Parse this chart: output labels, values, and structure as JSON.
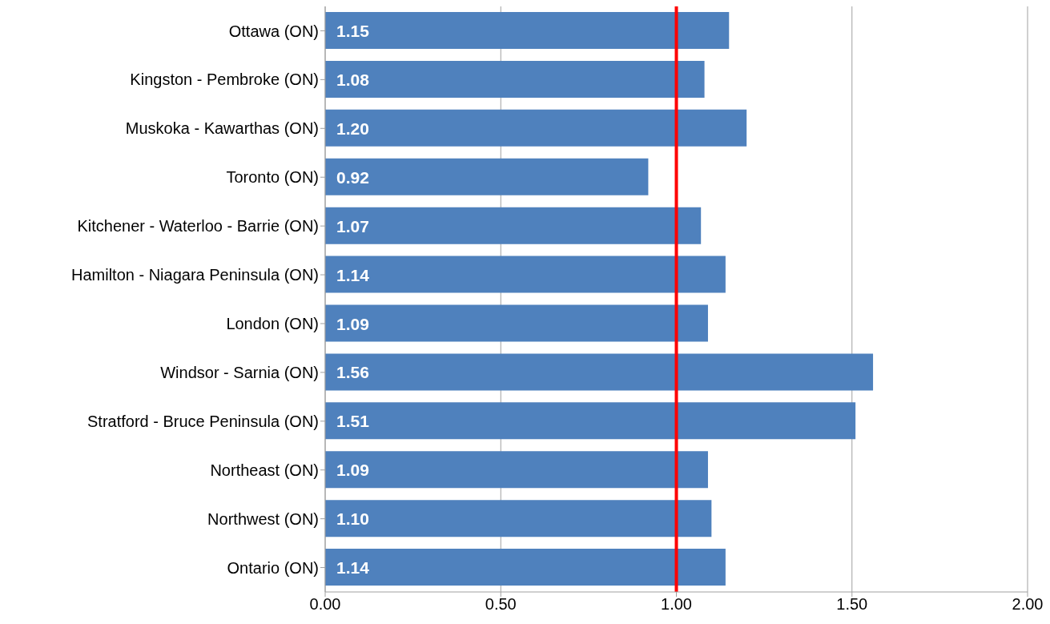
{
  "chart_data": {
    "type": "bar",
    "orientation": "horizontal",
    "categories": [
      "Ottawa (ON)",
      "Kingston - Pembroke (ON)",
      "Muskoka - Kawarthas (ON)",
      "Toronto (ON)",
      "Kitchener - Waterloo - Barrie (ON)",
      "Hamilton - Niagara Peninsula (ON)",
      "London (ON)",
      "Windsor - Sarnia (ON)",
      "Stratford - Bruce Peninsula (ON)",
      "Northeast (ON)",
      "Northwest (ON)",
      "Ontario (ON)"
    ],
    "values": [
      1.15,
      1.08,
      1.2,
      0.92,
      1.07,
      1.14,
      1.09,
      1.56,
      1.51,
      1.09,
      1.1,
      1.14
    ],
    "value_labels": [
      "1.15",
      "1.08",
      "1.20",
      "0.92",
      "1.07",
      "1.14",
      "1.09",
      "1.56",
      "1.51",
      "1.09",
      "1.10",
      "1.14"
    ],
    "color": "#4f81bd",
    "xlim": [
      0,
      2
    ],
    "xticks": [
      {
        "value": 0,
        "label": "0.00"
      },
      {
        "value": 0.5,
        "label": "0.50"
      },
      {
        "value": 1,
        "label": "1.00"
      },
      {
        "value": 1.5,
        "label": "1.50"
      },
      {
        "value": 2,
        "label": "2.00"
      }
    ],
    "grid": "x",
    "ref_lines": [
      {
        "axis": "x",
        "value": 1,
        "label": null,
        "color": "#ff0000"
      }
    ]
  }
}
